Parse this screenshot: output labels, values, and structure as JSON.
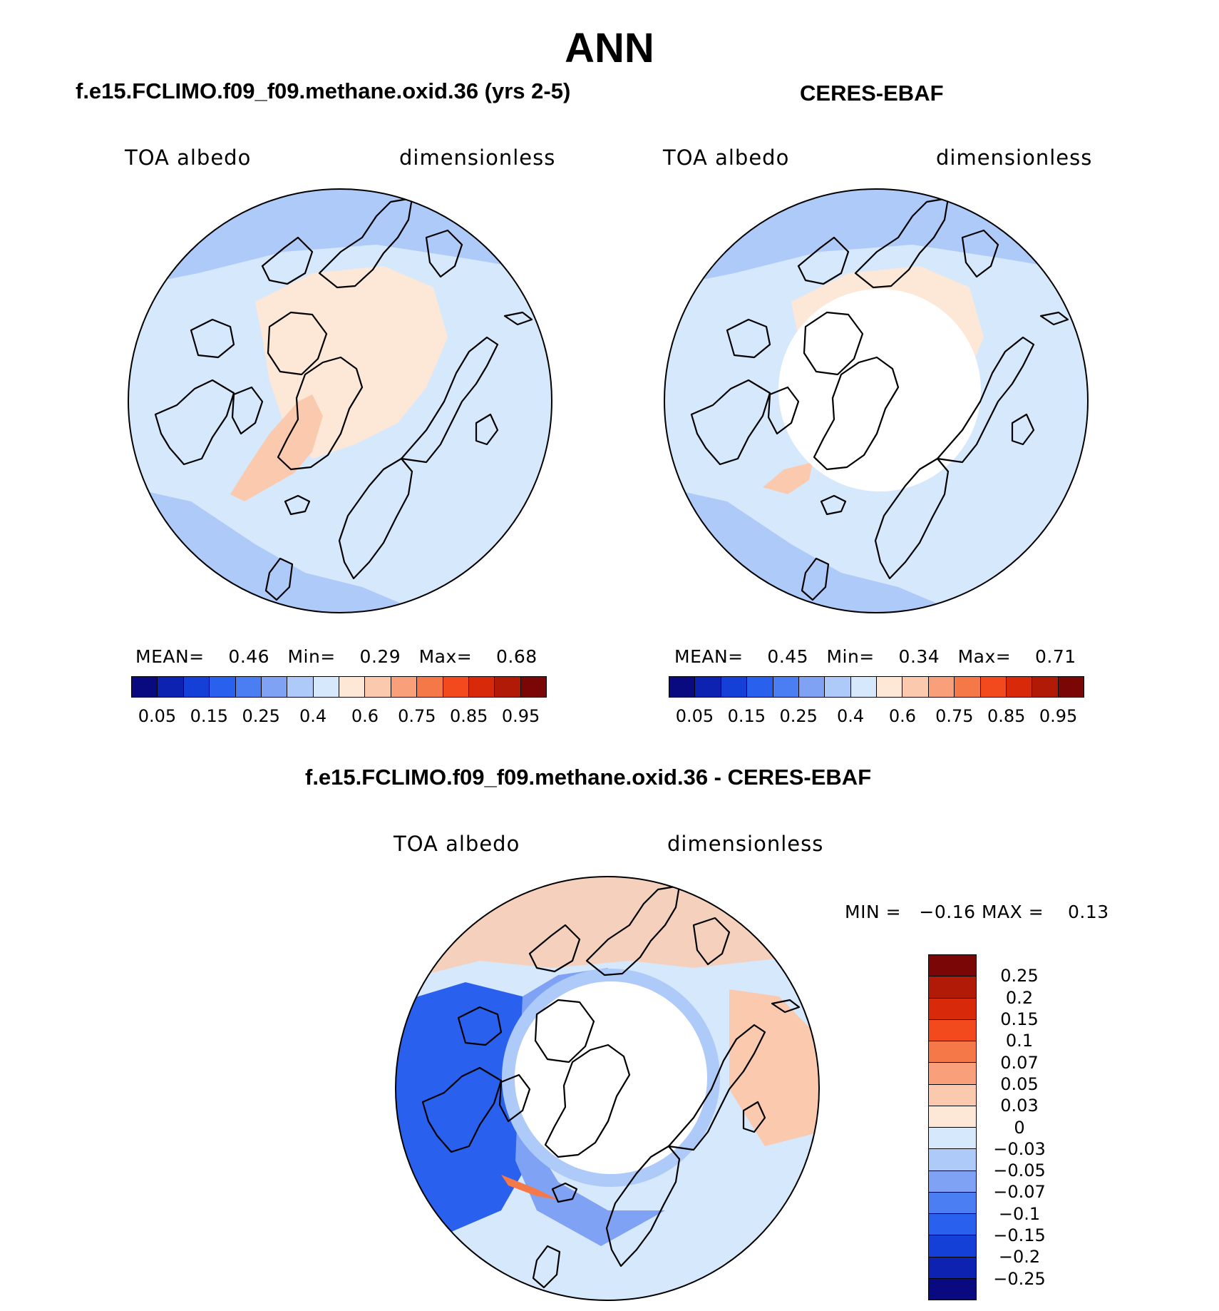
{
  "figure": {
    "title": "ANN"
  },
  "panels": [
    {
      "id": "model",
      "title": "f.e15.FCLIMO.f09_f09.methane.oxid.36 (yrs 2-5)",
      "left_label": "TOA albedo",
      "right_label": "dimensionless",
      "stats": {
        "mean_label": "MEAN=",
        "mean": "0.46",
        "min_label": "Min=",
        "min": "0.29",
        "max_label": "Max=",
        "max": "0.68"
      }
    },
    {
      "id": "obs",
      "title": "CERES-EBAF",
      "left_label": "TOA albedo",
      "right_label": "dimensionless",
      "stats": {
        "mean_label": "MEAN=",
        "mean": "0.45",
        "min_label": "Min=",
        "min": "0.34",
        "max_label": "Max=",
        "max": "0.71"
      }
    },
    {
      "id": "diff",
      "title": "f.e15.FCLIMO.f09_f09.methane.oxid.36 - CERES-EBAF",
      "left_label": "TOA albedo",
      "right_label": "dimensionless",
      "stats": {
        "min_label": "MIN =",
        "min": "−0.16",
        "max_label": "MAX =",
        "max": "0.13"
      }
    }
  ],
  "abs_colorbar": {
    "colors": [
      "#0a0a80",
      "#0d22b0",
      "#1440d8",
      "#2a60ee",
      "#4a7ef2",
      "#7fa2f5",
      "#aecaf8",
      "#d6e8fc",
      "#fde8d8",
      "#fbc9ad",
      "#f9a07a",
      "#f57848",
      "#f24a1c",
      "#d82a0a",
      "#b21a08",
      "#7a0606"
    ],
    "tick_labels": [
      "0.05",
      "0.15",
      "0.25",
      "0.4",
      "0.6",
      "0.75",
      "0.85",
      "0.95"
    ]
  },
  "diff_colorbar": {
    "colors_top_to_bottom": [
      "#7a0606",
      "#b21a08",
      "#d82a0a",
      "#f24a1c",
      "#f57848",
      "#f9a07a",
      "#fbc9ad",
      "#fde8d8",
      "#d6e8fc",
      "#aecaf8",
      "#7fa2f5",
      "#4a7ef2",
      "#2a60ee",
      "#1440d8",
      "#0d22b0",
      "#0a0a80"
    ],
    "tick_labels": [
      "0.25",
      "0.2",
      "0.15",
      "0.1",
      "0.07",
      "0.05",
      "0.03",
      "0",
      "−0.03",
      "−0.05",
      "−0.07",
      "−0.1",
      "−0.15",
      "−0.2",
      "−0.25"
    ]
  },
  "map_colors": {
    "ocean_model": "#d6e8fc",
    "midlat_model": "#aecaf8",
    "ice_model": "#fde8d8",
    "greenland_model": "#fbc9ad",
    "diff_pos": "#fbc9ad",
    "diff_neg": "#7fa2f5",
    "diff_strong_neg": "#2a60ee",
    "missing": "#ffffff",
    "coast": "#000000"
  }
}
